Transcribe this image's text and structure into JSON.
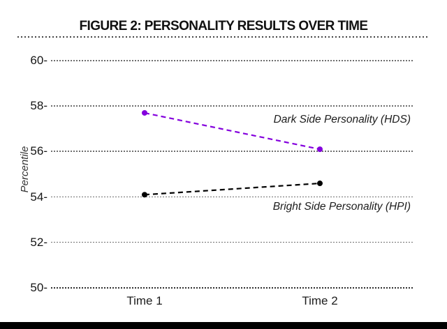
{
  "chart_data": {
    "type": "line",
    "title": "FIGURE 2: PERSONALITY RESULTS OVER TIME",
    "categories": [
      "Time 1",
      "Time 2"
    ],
    "series": [
      {
        "name": "Dark Side Personality (HDS)",
        "values": [
          57.7,
          56.1
        ],
        "color": "#8400dd",
        "line_style": "dashed",
        "marker": "circle"
      },
      {
        "name": "Bright Side Personality (HPI)",
        "values": [
          54.1,
          54.6
        ],
        "color": "#000000",
        "line_style": "dashed",
        "marker": "circle"
      }
    ],
    "xlabel": "",
    "ylabel": "Percentile",
    "ylim": [
      50,
      60
    ],
    "yticks": [
      60,
      58,
      56,
      54,
      52,
      50
    ],
    "ytick_labels": [
      "60-",
      "58-",
      "56-",
      "54-",
      "52-",
      "50-"
    ],
    "grid": "horizontal-dotted",
    "legend_position": "inline-right",
    "colors": {
      "grid": "#6e6e6e",
      "separator": "#444444",
      "footer_bar": "#000000",
      "text": "#161616"
    }
  }
}
